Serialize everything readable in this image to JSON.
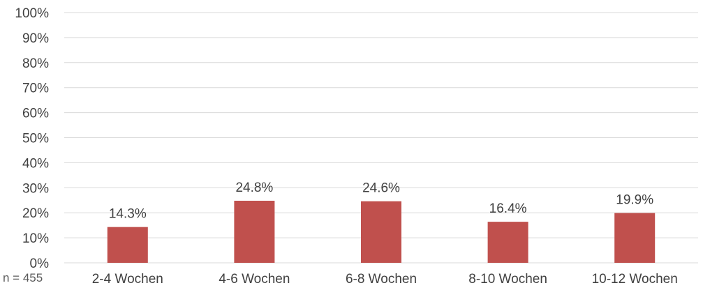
{
  "chart_data": {
    "type": "bar",
    "categories": [
      "2-4 Wochen",
      "4-6 Wochen",
      "6-8 Wochen",
      "8-10 Wochen",
      "10-12 Wochen"
    ],
    "values": [
      14.3,
      24.8,
      24.6,
      16.4,
      19.9
    ],
    "data_labels": [
      "14.3%",
      "24.8%",
      "24.6%",
      "16.4%",
      "19.9%"
    ],
    "ylim": [
      0,
      100
    ],
    "yticks": [
      0,
      10,
      20,
      30,
      40,
      50,
      60,
      70,
      80,
      90,
      100
    ],
    "ytick_labels": [
      "0%",
      "10%",
      "20%",
      "30%",
      "40%",
      "50%",
      "60%",
      "70%",
      "80%",
      "90%",
      "100%"
    ],
    "grid": true,
    "legend": "none",
    "bar_color": "#C0504D",
    "grid_color": "#D9D9D9",
    "annotation": "n = 455"
  }
}
